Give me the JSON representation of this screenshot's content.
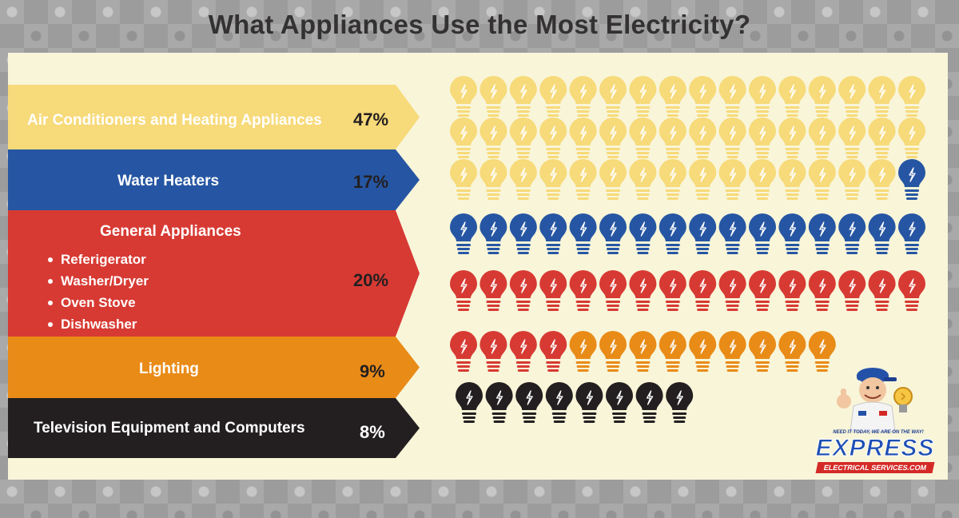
{
  "title": "What Appliances Use the Most Electricity?",
  "colors": {
    "yellow": "#f7da79",
    "blue": "#2656a3",
    "red": "#d73a33",
    "orange": "#e98b17",
    "black": "#231f20",
    "panel": "#f8f5d9"
  },
  "chart_data": {
    "type": "bar",
    "title": "What Appliances Use the Most Electricity?",
    "unit": "%",
    "categories": [
      "Air Conditioners and Heating Appliances",
      "Water Heaters",
      "General Appliances",
      "Lighting",
      "Television Equipment and Computers"
    ],
    "values": [
      47,
      17,
      20,
      9,
      8
    ],
    "bulb_colors": [
      "#f7da79",
      "#2656a3",
      "#d73a33",
      "#e98b17",
      "#231f20"
    ],
    "sub_items": {
      "General Appliances": [
        "Referigerator",
        "Washer/Dryer",
        "Oven Stove",
        "Dishwasher"
      ]
    }
  },
  "bands": [
    {
      "label": "Air Conditioners and Heating Appliances",
      "pct": "47%",
      "bg": "#f7da79",
      "fg": "#ffffff",
      "pct_fg": "#231f20"
    },
    {
      "label": "Water Heaters",
      "pct": "17%",
      "bg": "#2656a3",
      "fg": "#ffffff",
      "pct_fg": "#231f20"
    },
    {
      "label": "General Appliances",
      "pct": "20%",
      "bg": "#d73a33",
      "fg": "#ffffff",
      "pct_fg": "#231f20",
      "items": [
        "Referigerator",
        "Washer/Dryer",
        "Oven Stove",
        "Dishwasher"
      ]
    },
    {
      "label": "Lighting",
      "pct": "9%",
      "bg": "#e98b17",
      "fg": "#ffffff",
      "pct_fg": "#231f20"
    },
    {
      "label": "Television Equipment and Computers",
      "pct": "8%",
      "bg": "#231f20",
      "fg": "#ffffff",
      "pct_fg": "#ffffff"
    }
  ],
  "logo": {
    "tagline": "NEED IT TODAY,   WE ARE ON THE WAY!",
    "name": "EXPRESS",
    "sub": "ELECTRICAL SERVICES.COM",
    "icon": "electrician-mascot-icon"
  }
}
